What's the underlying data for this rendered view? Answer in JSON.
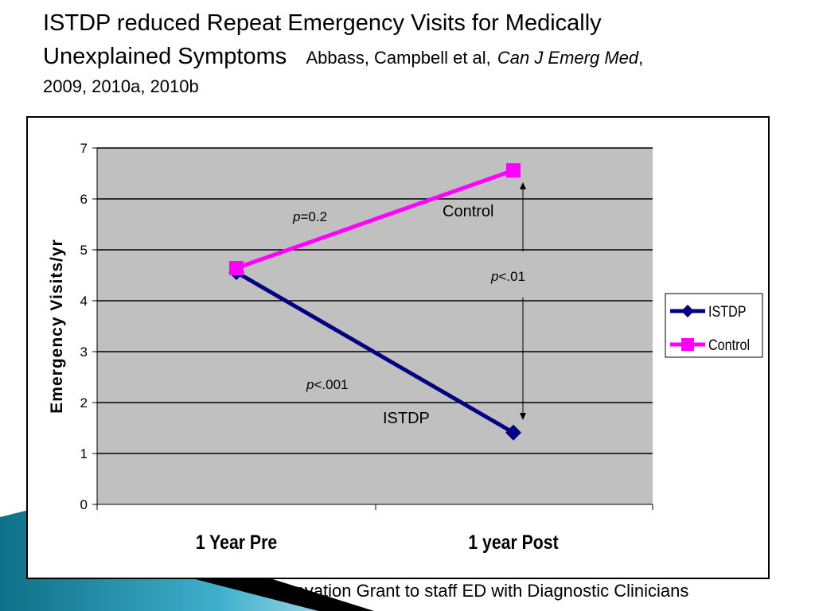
{
  "title": {
    "line1": "ISTDP reduced Repeat Emergency Visits for Medically",
    "line2_main": "Unexplained Symptoms",
    "citation_authors": "Abbass, Campbell et al,",
    "citation_journal": "Can J Emerg Med",
    "citation_comma": ",",
    "line3": "2009, 2010a, 2010b"
  },
  "footer": "Innovation Grant to staff ED with Diagnostic Clinicians",
  "chart_data": {
    "type": "line",
    "categories": [
      "1 Year Pre",
      "1 year Post"
    ],
    "ylabel": "Emergency Visits/yr",
    "xlabel": "",
    "ylim": [
      0,
      7
    ],
    "yticks": [
      "0",
      "1",
      "2",
      "3",
      "4",
      "5",
      "6",
      "7"
    ],
    "grid": true,
    "legend": "right",
    "plot_background": "#C0C0C0",
    "series": [
      {
        "name": "ISTDP",
        "values": [
          4.56,
          1.41
        ],
        "color": "#000080",
        "marker": "diamond"
      },
      {
        "name": "Control",
        "values": [
          4.64,
          6.56
        ],
        "color": "#FF00FF",
        "marker": "square"
      }
    ],
    "annotations": {
      "control_label": "Control",
      "istdp_label": "ISTDP",
      "p_control": {
        "italic": "p",
        "rest": "=0.2"
      },
      "p_istdp": {
        "italic": "p",
        "rest": "<.001"
      },
      "p_between": {
        "italic": "p",
        "rest": "<.01"
      }
    }
  }
}
